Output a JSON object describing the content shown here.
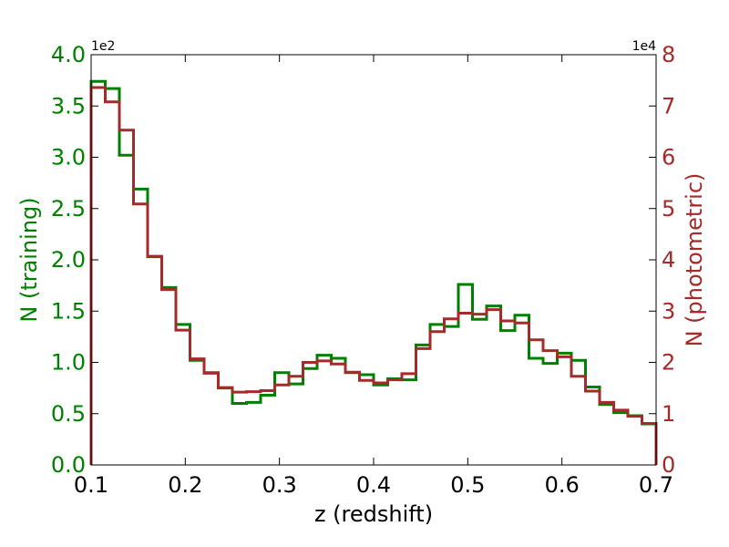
{
  "chart_data": {
    "type": "step-histogram",
    "xlabel": "z (redshift)",
    "xlim": [
      0.1,
      0.7
    ],
    "x_ticks": [
      0.1,
      0.2,
      0.3,
      0.4,
      0.5,
      0.6,
      0.7
    ],
    "x_tick_labels": [
      "0.1",
      "0.2",
      "0.3",
      "0.4",
      "0.5",
      "0.6",
      "0.7"
    ],
    "bin_edges": [
      0.1,
      0.115,
      0.13,
      0.145,
      0.16,
      0.175,
      0.19,
      0.205,
      0.22,
      0.235,
      0.25,
      0.265,
      0.28,
      0.295,
      0.31,
      0.325,
      0.34,
      0.355,
      0.37,
      0.385,
      0.4,
      0.415,
      0.43,
      0.445,
      0.46,
      0.475,
      0.49,
      0.505,
      0.52,
      0.535,
      0.55,
      0.565,
      0.58,
      0.595,
      0.61,
      0.625,
      0.64,
      0.655,
      0.67,
      0.685,
      0.7
    ],
    "left_axis": {
      "label": "N (training)",
      "multiplier": "1e2",
      "ylim": [
        0.0,
        4.0
      ],
      "ticks": [
        "0.0",
        "0.5",
        "1.0",
        "1.5",
        "2.0",
        "2.5",
        "3.0",
        "3.5",
        "4.0"
      ],
      "color": "#008000"
    },
    "right_axis": {
      "label": "N (photometric)",
      "multiplier": "1e4",
      "ylim": [
        0,
        8
      ],
      "ticks": [
        "0",
        "1",
        "2",
        "3",
        "4",
        "5",
        "6",
        "7",
        "8"
      ],
      "color": "#a52a2a"
    },
    "series": [
      {
        "axis": "left",
        "color": "#008000",
        "values": [
          3.74,
          3.67,
          3.02,
          2.69,
          2.03,
          1.73,
          1.37,
          1.02,
          0.9,
          0.75,
          0.6,
          0.61,
          0.68,
          0.9,
          0.79,
          0.94,
          1.07,
          1.04,
          0.9,
          0.88,
          0.78,
          0.84,
          0.83,
          1.17,
          1.37,
          1.35,
          1.76,
          1.42,
          1.55,
          1.31,
          1.46,
          1.04,
          0.99,
          1.09,
          1.02,
          0.76,
          0.59,
          0.51,
          0.48,
          0.4
        ]
      },
      {
        "axis": "right",
        "color": "#a52a2a",
        "values": [
          7.36,
          7.08,
          6.53,
          5.09,
          4.07,
          3.42,
          2.63,
          2.07,
          1.79,
          1.51,
          1.42,
          1.43,
          1.45,
          1.56,
          1.73,
          2.0,
          2.03,
          1.97,
          1.81,
          1.65,
          1.6,
          1.66,
          1.78,
          2.27,
          2.6,
          2.85,
          2.96,
          2.94,
          3.03,
          2.81,
          2.77,
          2.44,
          2.23,
          2.11,
          1.73,
          1.44,
          1.22,
          1.07,
          0.95,
          0.81
        ]
      }
    ]
  }
}
